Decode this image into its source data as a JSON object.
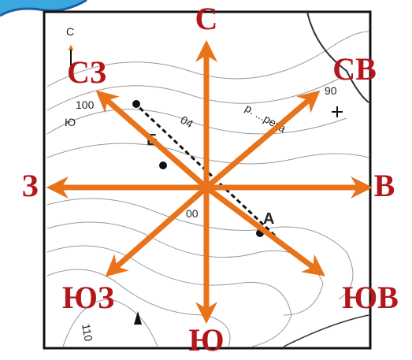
{
  "directions": [
    "С",
    "СВ",
    "В",
    "ЮВ",
    "Ю",
    "ЮЗ",
    "З",
    "СЗ"
  ],
  "map_labels": {
    "north": "С",
    "south": "Ю",
    "contour_100": "100",
    "contour_90": "90",
    "point_a": "А",
    "point_b": "Б",
    "contour_110": "110",
    "contour_00": "00",
    "azimuth": "04",
    "river": "р. ...река"
  }
}
